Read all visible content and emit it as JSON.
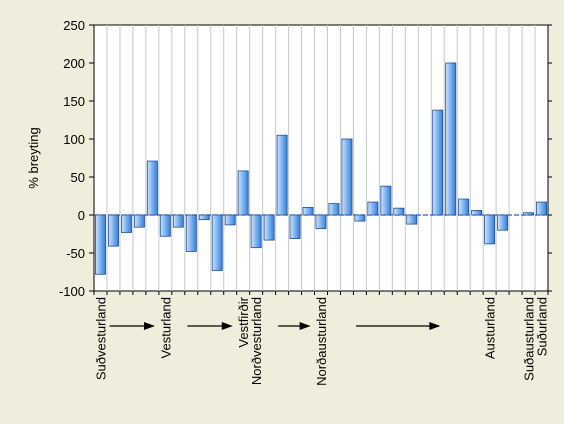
{
  "chart_data": {
    "type": "bar",
    "ylabel": "% breyting",
    "ylim": [
      -100,
      250
    ],
    "yticks": [
      -100,
      -50,
      0,
      50,
      100,
      150,
      200,
      250
    ],
    "grid": "vertical",
    "values": [
      -78,
      -41,
      -23,
      -16,
      71,
      -28,
      -16,
      -48,
      -6,
      -73,
      -13,
      58,
      -43,
      -33,
      105,
      -31,
      10,
      -18,
      15,
      100,
      -8,
      17,
      38,
      9,
      -12,
      0,
      138,
      200,
      21,
      6,
      -38,
      -20,
      0,
      3,
      17
    ],
    "category_labels": [
      {
        "index": 0,
        "label": "Suðvesturland"
      },
      {
        "index": 5,
        "label": "Vesturland"
      },
      {
        "index": 11,
        "label": "Vestfirðir"
      },
      {
        "index": 12,
        "label": "Norðvesturland"
      },
      {
        "index": 17,
        "label": "Norðausturland"
      },
      {
        "index": 30,
        "label": "Austurland"
      },
      {
        "index": 33,
        "label": "Suðausturland"
      },
      {
        "index": 34,
        "label": "Suðurland"
      }
    ],
    "arrows": [
      {
        "from_index": 1,
        "to_index": 4
      },
      {
        "from_index": 7,
        "to_index": 10
      },
      {
        "from_index": 14,
        "to_index": 16
      },
      {
        "from_index": 20,
        "to_index": 26
      }
    ],
    "colors": {
      "bar_fill_light": "#cfe4fb",
      "bar_fill_dark": "#2f7fe0",
      "bar_stroke": "#1f4f9a",
      "baseline": "#2a5fd0",
      "background": "#efeedc"
    }
  }
}
